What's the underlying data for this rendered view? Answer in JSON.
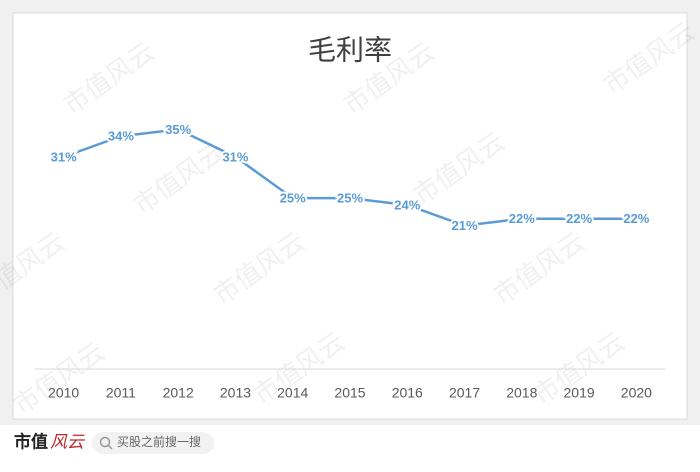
{
  "chart_data": {
    "type": "line",
    "title": "毛利率",
    "categories": [
      "2010",
      "2011",
      "2012",
      "2013",
      "2014",
      "2015",
      "2016",
      "2017",
      "2018",
      "2019",
      "2020"
    ],
    "values": [
      31,
      34,
      35,
      31,
      25,
      25,
      24,
      21,
      22,
      22,
      22
    ],
    "value_labels": [
      "31%",
      "34%",
      "35%",
      "31%",
      "25%",
      "25%",
      "24%",
      "21%",
      "22%",
      "22%",
      "22%"
    ],
    "color": "#5b9bd5",
    "ylim": [
      0,
      40
    ],
    "grid": false
  },
  "watermark": "市值风云",
  "footer": {
    "logo_main": "市值",
    "logo_accent": "风云",
    "search": "买股之前搜一搜"
  }
}
